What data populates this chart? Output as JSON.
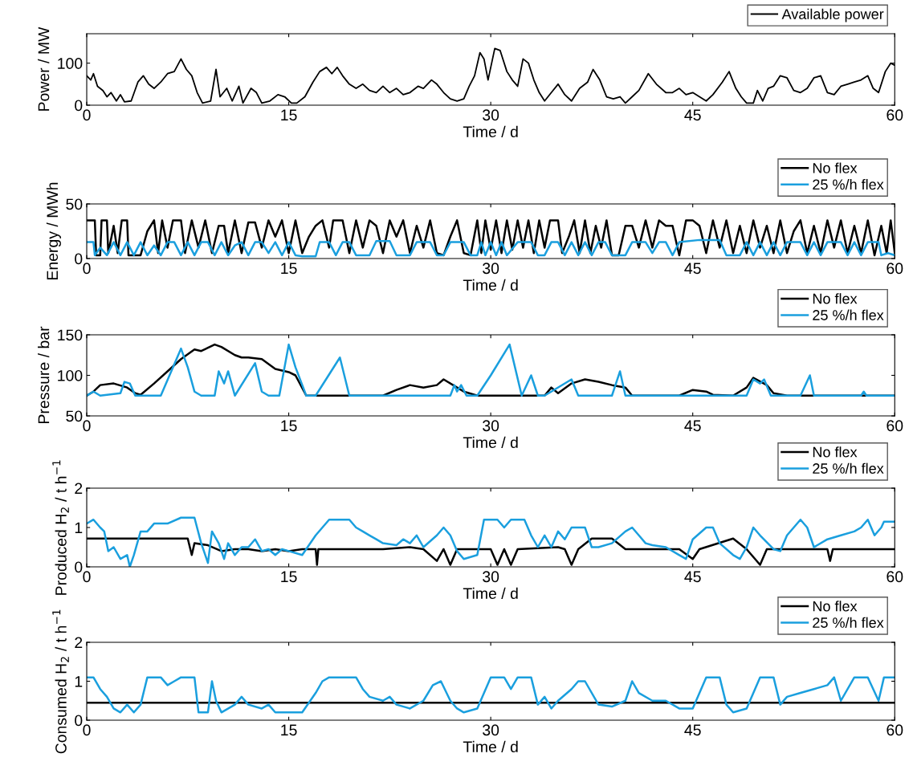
{
  "chart_data": [
    {
      "type": "line",
      "xlabel": "Time / d",
      "ylabel": "Power / MW",
      "xlim": [
        0,
        60
      ],
      "xticks": [
        0,
        15,
        30,
        45,
        60
      ],
      "ylim": [
        0,
        170
      ],
      "yticks": [
        0,
        100
      ],
      "legend": "top right",
      "grid": false,
      "series": [
        {
          "name": "Available power",
          "color": "#000000",
          "x": [
            0,
            0.3,
            0.5,
            0.8,
            1.2,
            1.5,
            1.8,
            2.2,
            2.5,
            2.8,
            3.3,
            3.8,
            4.2,
            4.6,
            5,
            5.5,
            6,
            6.5,
            7,
            7.4,
            7.8,
            8.2,
            8.6,
            9.2,
            9.6,
            9.9,
            10.4,
            10.8,
            11.3,
            11.6,
            12.2,
            12.6,
            13,
            13.6,
            14.2,
            14.7,
            15.2,
            15.6,
            16.2,
            16.8,
            17.3,
            17.8,
            18.2,
            18.6,
            19,
            19.5,
            20,
            20.5,
            21,
            21.5,
            22,
            22.5,
            23,
            23.5,
            24,
            24.6,
            25,
            25.6,
            26,
            26.5,
            27,
            27.5,
            28,
            28.4,
            28.8,
            29.2,
            29.5,
            29.8,
            30.3,
            30.7,
            31.2,
            31.6,
            32,
            32.4,
            32.8,
            33.2,
            33.6,
            34,
            34.5,
            35,
            35.5,
            36,
            36.6,
            37.2,
            37.6,
            38.1,
            38.6,
            39.1,
            39.6,
            40,
            40.5,
            41,
            41.7,
            42.3,
            43,
            43.5,
            44,
            44.5,
            45,
            45.5,
            46,
            46.5,
            47.2,
            47.7,
            48.2,
            48.6,
            49,
            49.5,
            49.8,
            50.2,
            50.6,
            51,
            51.5,
            52,
            52.5,
            53,
            53.5,
            54,
            54.5,
            55,
            55.5,
            56,
            56.5,
            57,
            57.5,
            58,
            58.4,
            58.8,
            59.3,
            59.7,
            60
          ],
          "values": [
            70,
            60,
            75,
            45,
            35,
            20,
            30,
            10,
            25,
            8,
            10,
            55,
            70,
            50,
            40,
            55,
            75,
            80,
            110,
            85,
            70,
            30,
            5,
            10,
            85,
            20,
            40,
            10,
            45,
            5,
            40,
            30,
            5,
            10,
            25,
            20,
            5,
            5,
            20,
            55,
            80,
            90,
            75,
            90,
            70,
            50,
            40,
            50,
            35,
            30,
            45,
            30,
            40,
            25,
            30,
            45,
            40,
            60,
            50,
            30,
            15,
            10,
            15,
            45,
            70,
            125,
            110,
            60,
            135,
            130,
            80,
            60,
            45,
            110,
            100,
            60,
            30,
            10,
            30,
            50,
            25,
            10,
            40,
            55,
            85,
            60,
            20,
            15,
            20,
            5,
            20,
            35,
            75,
            50,
            30,
            30,
            40,
            25,
            30,
            20,
            10,
            25,
            55,
            80,
            40,
            20,
            5,
            5,
            35,
            10,
            40,
            45,
            70,
            65,
            35,
            30,
            40,
            65,
            70,
            30,
            25,
            45,
            50,
            55,
            60,
            70,
            40,
            30,
            80,
            100,
            95
          ]
        }
      ]
    },
    {
      "type": "line",
      "xlabel": "Time / d",
      "ylabel": "Energy / MWh",
      "xlim": [
        0,
        60
      ],
      "xticks": [
        0,
        15,
        30,
        45,
        60
      ],
      "ylim": [
        0,
        50
      ],
      "yticks": [
        0,
        50
      ],
      "legend": "top right",
      "grid": false,
      "series": [
        {
          "name": "No flex",
          "color": "#000000",
          "x": [
            0,
            0.6,
            0.7,
            1,
            1.1,
            1.5,
            1.6,
            2,
            2.3,
            2.6,
            3,
            3.1,
            4,
            4.5,
            5,
            5.3,
            5.6,
            6,
            6.4,
            7,
            7.3,
            7.8,
            8.3,
            8.8,
            9.3,
            9.8,
            10.2,
            10.5,
            11,
            11.5,
            12,
            12.5,
            13,
            13.5,
            14,
            14.5,
            15,
            15.5,
            16,
            16.5,
            17,
            17.5,
            18,
            18.3,
            19,
            19.5,
            20,
            20.5,
            21,
            21.5,
            22,
            22.5,
            23,
            23.5,
            24,
            24.5,
            25,
            25.5,
            26,
            26.5,
            27,
            27.5,
            28,
            28.5,
            29,
            29.3,
            29.6,
            30,
            30.4,
            30.8,
            31.2,
            31.6,
            32,
            32.4,
            32.8,
            33.2,
            33.6,
            34,
            34.4,
            35,
            35.3,
            35.8,
            36.2,
            36.6,
            37,
            37.4,
            37.8,
            38.2,
            38.6,
            39,
            39.5,
            40,
            40.5,
            41,
            41.5,
            42,
            42.5,
            43,
            43.5,
            44,
            44.5,
            45,
            45.5,
            46,
            46.5,
            47,
            47.5,
            48,
            48.5,
            49,
            49.5,
            50,
            50.5,
            51,
            51.5,
            52,
            52.5,
            53,
            53.5,
            54,
            54.5,
            55,
            55.5,
            56,
            56.5,
            57,
            57.5,
            58,
            58.5,
            59,
            59.4,
            59.7,
            60
          ],
          "values": [
            35,
            35,
            3,
            3,
            35,
            35,
            5,
            30,
            5,
            35,
            35,
            3,
            3,
            25,
            35,
            5,
            35,
            10,
            35,
            35,
            5,
            35,
            10,
            35,
            5,
            30,
            30,
            5,
            35,
            5,
            33,
            33,
            10,
            35,
            20,
            35,
            5,
            35,
            5,
            20,
            30,
            35,
            10,
            35,
            35,
            5,
            35,
            10,
            35,
            30,
            5,
            35,
            20,
            35,
            5,
            30,
            10,
            35,
            5,
            3,
            20,
            35,
            5,
            3,
            35,
            5,
            35,
            8,
            35,
            5,
            35,
            8,
            35,
            10,
            35,
            5,
            35,
            10,
            35,
            35,
            5,
            20,
            35,
            5,
            35,
            5,
            30,
            10,
            35,
            3,
            3,
            30,
            30,
            10,
            35,
            10,
            35,
            30,
            30,
            3,
            35,
            35,
            30,
            5,
            35,
            10,
            35,
            5,
            30,
            5,
            35,
            10,
            30,
            5,
            35,
            5,
            25,
            35,
            5,
            30,
            5,
            35,
            10,
            35,
            5,
            30,
            5,
            35,
            3,
            30,
            5,
            35,
            5
          ]
        },
        {
          "name": "25 %/h flex",
          "color": "#1a9fde",
          "x": [
            0,
            0.5,
            0.6,
            1,
            1.5,
            2,
            2.5,
            3,
            3.5,
            4,
            4.5,
            5,
            5.5,
            6,
            6.5,
            7,
            7.5,
            8,
            8.5,
            9,
            9.5,
            10,
            10.5,
            11,
            11.5,
            12,
            12.5,
            13,
            13.5,
            14,
            14.5,
            15,
            15.5,
            16,
            17,
            17.3,
            18,
            18.5,
            19,
            19.5,
            20,
            21,
            21.5,
            22.5,
            23,
            24,
            24.5,
            25.5,
            26,
            26.5,
            27,
            28,
            28.5,
            29,
            29.3,
            29.6,
            30,
            30.4,
            30.8,
            31.2,
            32,
            33,
            33.5,
            34,
            34.5,
            35,
            35.5,
            36,
            36.5,
            37,
            37.5,
            38,
            38.5,
            39,
            40,
            40.5,
            41.5,
            42,
            42.5,
            43,
            43.5,
            44,
            45.5,
            47,
            47.5,
            48.5,
            49,
            49.5,
            50,
            50.5,
            51,
            51.5,
            52,
            53,
            53.5,
            54,
            54.5,
            55,
            56,
            56.5,
            57,
            57.5,
            58,
            58.8,
            59,
            59.5,
            60
          ],
          "values": [
            15,
            15,
            3,
            10,
            3,
            15,
            3,
            15,
            3,
            15,
            3,
            12,
            3,
            15,
            15,
            3,
            15,
            3,
            15,
            15,
            3,
            15,
            3,
            12,
            15,
            3,
            15,
            15,
            5,
            15,
            3,
            15,
            3,
            2,
            2,
            15,
            15,
            3,
            15,
            15,
            3,
            3,
            16,
            16,
            3,
            3,
            15,
            15,
            3,
            3,
            15,
            15,
            3,
            3,
            15,
            3,
            15,
            3,
            15,
            3,
            15,
            15,
            3,
            3,
            15,
            15,
            3,
            15,
            3,
            15,
            3,
            15,
            15,
            3,
            3,
            15,
            15,
            5,
            15,
            15,
            3,
            15,
            17,
            17,
            3,
            3,
            15,
            3,
            15,
            3,
            15,
            3,
            15,
            15,
            3,
            15,
            3,
            15,
            15,
            3,
            15,
            3,
            15,
            15,
            3,
            5,
            3
          ]
        }
      ]
    },
    {
      "type": "line",
      "xlabel": "Time / d",
      "ylabel": "Pressure / bar",
      "xlim": [
        0,
        60
      ],
      "xticks": [
        0,
        15,
        30,
        45,
        60
      ],
      "ylim": [
        50,
        150
      ],
      "yticks": [
        50,
        100,
        150
      ],
      "legend": "top right",
      "grid": false,
      "series": [
        {
          "name": "No flex",
          "color": "#000000",
          "x": [
            0,
            0.5,
            1,
            2,
            3,
            3.6,
            4,
            5,
            6,
            7,
            8,
            8.5,
            9,
            9.5,
            10,
            11,
            11.5,
            12,
            13,
            14,
            15,
            15.5,
            16.3,
            22,
            23,
            24,
            25,
            26,
            26.5,
            27.5,
            28,
            29,
            34,
            34.5,
            35,
            36,
            37,
            38,
            39,
            40,
            40.5,
            44,
            45,
            46,
            46.5,
            48,
            49,
            49.5,
            50.5,
            51,
            52,
            60
          ],
          "values": [
            75,
            80,
            88,
            90,
            85,
            78,
            76,
            90,
            105,
            120,
            132,
            130,
            134,
            138,
            135,
            125,
            122,
            122,
            120,
            108,
            104,
            100,
            75,
            75,
            82,
            88,
            85,
            88,
            95,
            85,
            80,
            75,
            75,
            85,
            78,
            90,
            95,
            92,
            88,
            85,
            75,
            75,
            82,
            80,
            76,
            75,
            85,
            97,
            88,
            78,
            75,
            75
          ]
        },
        {
          "name": "25 %/h flex",
          "color": "#1a9fde",
          "x": [
            0,
            0.5,
            1,
            2.5,
            2.8,
            3.2,
            3.6,
            5.5,
            7,
            7.5,
            8,
            8.5,
            9.5,
            9.8,
            10.2,
            10.5,
            11,
            12.5,
            13,
            13.5,
            14.3,
            15,
            15.5,
            16.3,
            17,
            18.8,
            19.5,
            27,
            27.3,
            27.5,
            27.8,
            28.2,
            29,
            30,
            31.4,
            32.3,
            33,
            33.5,
            34,
            36,
            36.5,
            39,
            39.6,
            40,
            49,
            49.5,
            50,
            50.3,
            50.8,
            53,
            53.7,
            54,
            57.5,
            57.7,
            57.9,
            60
          ],
          "values": [
            75,
            80,
            75,
            78,
            92,
            90,
            75,
            75,
            133,
            110,
            80,
            75,
            75,
            105,
            90,
            105,
            75,
            115,
            80,
            75,
            75,
            138,
            110,
            75,
            75,
            122,
            75,
            75,
            88,
            80,
            88,
            75,
            75,
            100,
            138,
            75,
            100,
            75,
            75,
            95,
            75,
            75,
            105,
            75,
            75,
            95,
            90,
            95,
            75,
            75,
            100,
            75,
            75,
            80,
            75,
            75
          ]
        }
      ]
    },
    {
      "type": "line",
      "xlabel": "Time / d",
      "ylabel": "Produced H$_{2}$ / t h$^{−1}$",
      "xlim": [
        0,
        60
      ],
      "xticks": [
        0,
        15,
        30,
        45,
        60
      ],
      "ylim": [
        0,
        2
      ],
      "yticks": [
        0,
        1,
        2
      ],
      "legend": "top right",
      "grid": false,
      "series": [
        {
          "name": "No flex",
          "color": "#000000",
          "x": [
            0,
            7.5,
            7.8,
            8,
            9,
            10,
            11,
            12,
            13,
            14,
            15,
            16,
            17,
            17.1,
            17.2,
            22,
            24,
            25,
            26,
            26.5,
            27,
            27.5,
            30,
            30.5,
            31,
            31.5,
            32,
            35,
            35.5,
            36,
            36.5,
            37.5,
            39,
            40,
            42,
            44,
            45,
            45.5,
            48,
            49,
            50,
            50.5,
            52,
            55,
            55.2,
            55.4,
            60
          ],
          "values": [
            0.72,
            0.72,
            0.3,
            0.6,
            0.55,
            0.4,
            0.45,
            0.45,
            0.4,
            0.45,
            0.4,
            0.45,
            0.45,
            0.05,
            0.45,
            0.45,
            0.5,
            0.45,
            0.15,
            0.45,
            0.05,
            0.45,
            0.45,
            0.05,
            0.45,
            0.05,
            0.45,
            0.5,
            0.45,
            0.05,
            0.45,
            0.72,
            0.72,
            0.45,
            0.45,
            0.45,
            0.2,
            0.45,
            0.72,
            0.45,
            0.05,
            0.45,
            0.45,
            0.45,
            0.15,
            0.45,
            0.45
          ]
        },
        {
          "name": "25 %/h flex",
          "color": "#1a9fde",
          "x": [
            0,
            0.5,
            1,
            1.3,
            1.6,
            2,
            2.5,
            3,
            3.2,
            3.5,
            4,
            4.5,
            5,
            6,
            7,
            8,
            8.5,
            9,
            9.3,
            9.8,
            10.2,
            10.5,
            11,
            11.5,
            12,
            12.5,
            13,
            13.5,
            14,
            14.5,
            15,
            16,
            17,
            17.5,
            18,
            19.5,
            20,
            20.5,
            21,
            21.5,
            22,
            23,
            23.5,
            24,
            24.5,
            25,
            26,
            26.5,
            27,
            27.5,
            28,
            29,
            29.5,
            30.5,
            31,
            31.5,
            32.5,
            33,
            33.5,
            34,
            34.5,
            35,
            35.5,
            36,
            37,
            37.5,
            38,
            39,
            40,
            40.5,
            41,
            41.5,
            42,
            43,
            44,
            44.5,
            45,
            46,
            46.5,
            47,
            48,
            48.5,
            49,
            49.5,
            50,
            51,
            51.5,
            52,
            53,
            53.5,
            54,
            55,
            56,
            57,
            57.5,
            58,
            58.5,
            59,
            59.2,
            60
          ],
          "values": [
            1.1,
            1.2,
            1.0,
            0.9,
            0.4,
            0.5,
            0.2,
            0.3,
            0,
            0.3,
            0.9,
            0.9,
            1.1,
            1.1,
            1.25,
            1.25,
            0.6,
            0.1,
            0.9,
            0.6,
            0.2,
            0.6,
            0.3,
            0.5,
            0.5,
            0.7,
            0.4,
            0.45,
            0.3,
            0.45,
            0.4,
            0.3,
            0.8,
            1.0,
            1.2,
            1.2,
            1.0,
            0.9,
            0.8,
            0.7,
            0.6,
            0.55,
            0.7,
            0.6,
            0.8,
            0.5,
            0.8,
            1.0,
            0.8,
            0.4,
            0.2,
            0.3,
            1.2,
            1.2,
            1.0,
            1.2,
            1.2,
            0.8,
            0.5,
            0.8,
            0.5,
            0.9,
            0.7,
            1.0,
            1.0,
            0.5,
            0.5,
            0.6,
            0.9,
            1.0,
            0.8,
            0.6,
            0.55,
            0.5,
            0.3,
            0.2,
            0.7,
            1.0,
            1.0,
            0.6,
            0.3,
            0.2,
            0.5,
            1.0,
            0.8,
            0.45,
            0.4,
            0.8,
            1.2,
            1.0,
            0.5,
            0.7,
            0.8,
            0.9,
            1.0,
            1.2,
            0.8,
            1.0,
            1.15,
            1.15
          ]
        }
      ]
    },
    {
      "type": "line",
      "xlabel": "Time / d",
      "ylabel": "Consumed H$_{2}$ / t h$^{−1}$",
      "xlim": [
        0,
        60
      ],
      "xticks": [
        0,
        15,
        30,
        45,
        60
      ],
      "ylim": [
        0,
        2
      ],
      "yticks": [
        0,
        1,
        2
      ],
      "legend": "top right",
      "grid": false,
      "series": [
        {
          "name": "No flex",
          "color": "#000000",
          "x": [
            0,
            60
          ],
          "values": [
            0.45,
            0.45
          ]
        },
        {
          "name": "25 %/h flex",
          "color": "#1a9fde",
          "x": [
            0,
            0.5,
            1,
            1.5,
            2,
            2.5,
            3,
            3.5,
            4,
            4.5,
            5.5,
            6,
            6.5,
            7,
            8,
            8.3,
            9,
            9.3,
            9.6,
            10,
            11,
            11.5,
            12,
            13,
            13.5,
            14,
            16,
            17,
            17.5,
            18,
            20,
            20.5,
            21,
            22,
            22.5,
            23,
            24,
            25,
            25.7,
            26.3,
            27,
            27.5,
            28,
            29,
            30,
            31,
            31.5,
            32,
            33,
            33.5,
            34,
            34.5,
            35,
            36,
            36.5,
            37,
            38,
            39,
            40,
            40.5,
            41,
            42,
            43,
            44,
            45,
            46,
            47,
            47.5,
            48,
            49,
            50,
            51,
            51.5,
            52,
            53,
            54,
            55,
            55.5,
            56,
            57,
            58,
            58.8,
            59.2,
            60
          ],
          "values": [
            1.1,
            1.1,
            0.8,
            0.6,
            0.3,
            0.2,
            0.4,
            0.2,
            0.4,
            1.1,
            1.1,
            0.9,
            1.0,
            1.1,
            1.1,
            0.2,
            0.2,
            1.0,
            0.5,
            0.2,
            0.4,
            0.6,
            0.4,
            0.3,
            0.4,
            0.2,
            0.2,
            0.7,
            1.0,
            1.1,
            1.1,
            0.8,
            0.6,
            0.5,
            0.6,
            0.4,
            0.3,
            0.5,
            0.9,
            1.0,
            0.5,
            0.3,
            0.2,
            0.3,
            1.1,
            1.1,
            0.8,
            1.1,
            1.1,
            0.4,
            0.6,
            0.3,
            0.5,
            0.8,
            1.0,
            1.0,
            0.4,
            0.35,
            0.5,
            1.0,
            0.7,
            0.5,
            0.5,
            0.3,
            0.3,
            1.1,
            1.1,
            0.4,
            0.2,
            0.3,
            1.1,
            1.1,
            0.4,
            0.6,
            0.7,
            0.8,
            0.9,
            1.1,
            0.5,
            1.1,
            1.1,
            0.5,
            1.1,
            1.1
          ]
        }
      ]
    }
  ]
}
